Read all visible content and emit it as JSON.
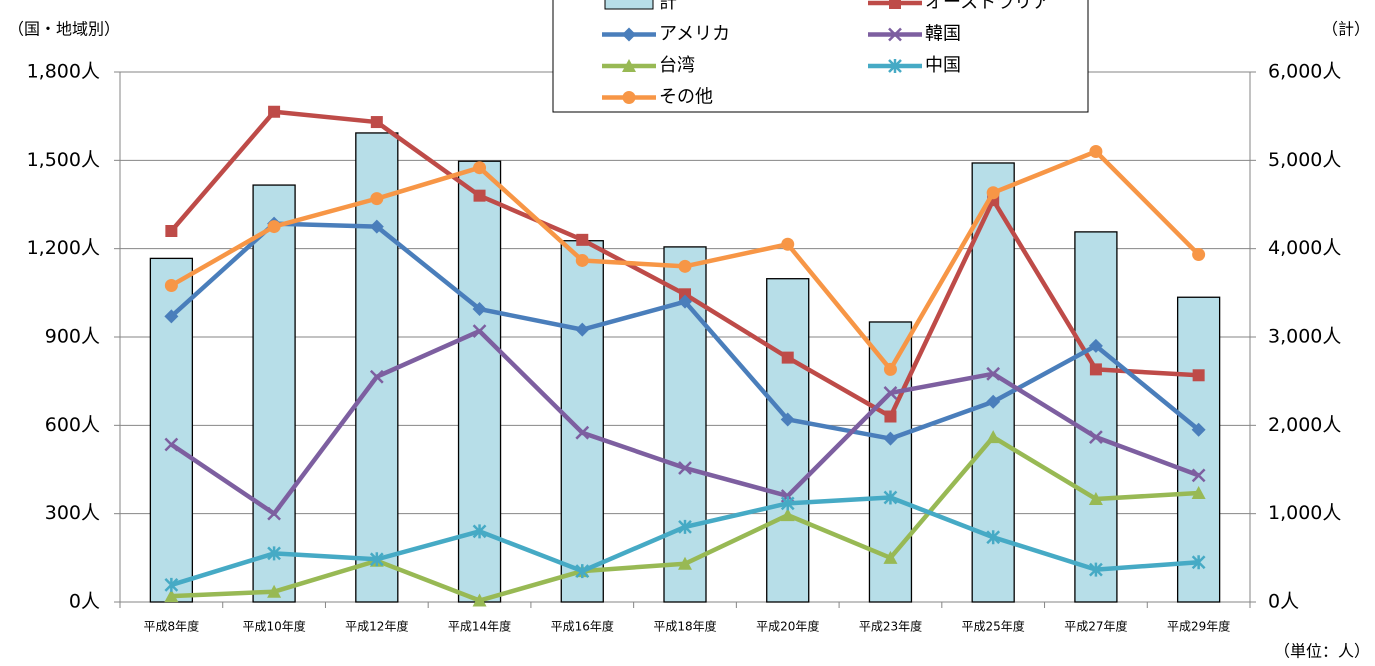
{
  "chart_data": {
    "type": "combo",
    "y_axis_label": "（国・地域別）",
    "y2_axis_label": "（計）",
    "note": "（単位：人）",
    "categories": [
      "平成8年度",
      "平成10年度",
      "平成12年度",
      "平成14年度",
      "平成16年度",
      "平成18年度",
      "平成20年度",
      "平成23年度",
      "平成25年度",
      "平成27年度",
      "平成29年度"
    ],
    "series": [
      {
        "name": "計",
        "type": "bar",
        "axis": "y2",
        "color": "#b7dee8",
        "values": [
          3890,
          4720,
          5310,
          4990,
          4090,
          4020,
          3660,
          3170,
          4970,
          4190,
          3450
        ]
      },
      {
        "name": "オーストラリア",
        "type": "line",
        "marker": "square",
        "color": "#be4b48",
        "values": [
          1260,
          1665,
          1630,
          1380,
          1230,
          1045,
          830,
          630,
          1365,
          790,
          770
        ]
      },
      {
        "name": "アメリカ",
        "type": "line",
        "marker": "diamond",
        "color": "#4a7ebb",
        "values": [
          970,
          1285,
          1275,
          995,
          925,
          1020,
          620,
          555,
          680,
          870,
          585
        ]
      },
      {
        "name": "韓国",
        "type": "line",
        "marker": "x",
        "color": "#7d5fa0",
        "values": [
          535,
          300,
          765,
          920,
          575,
          455,
          360,
          710,
          775,
          560,
          430
        ]
      },
      {
        "name": "台湾",
        "type": "line",
        "marker": "triangle",
        "color": "#98b954",
        "values": [
          20,
          35,
          140,
          5,
          105,
          130,
          295,
          150,
          560,
          350,
          370
        ]
      },
      {
        "name": "中国",
        "type": "line",
        "marker": "star",
        "color": "#46aac5",
        "values": [
          58,
          165,
          145,
          240,
          105,
          255,
          335,
          355,
          220,
          110,
          135
        ]
      },
      {
        "name": "その他",
        "type": "line",
        "marker": "circle",
        "color": "#f79646",
        "values": [
          1075,
          1275,
          1370,
          1475,
          1160,
          1140,
          1215,
          790,
          1390,
          1530,
          1180
        ]
      }
    ],
    "ylim": [
      0,
      1800
    ],
    "yticks": [
      {
        "value": 0,
        "label": "0人"
      },
      {
        "value": 300,
        "label": "300人"
      },
      {
        "value": 600,
        "label": "600人"
      },
      {
        "value": 900,
        "label": "900人"
      },
      {
        "value": 1200,
        "label": "1,200人"
      },
      {
        "value": 1500,
        "label": "1,500人"
      },
      {
        "value": 1800,
        "label": "1,800人"
      }
    ],
    "y2lim": [
      0,
      6000
    ],
    "y2ticks": [
      {
        "value": 0,
        "label": "0人"
      },
      {
        "value": 1000,
        "label": "1,000人"
      },
      {
        "value": 2000,
        "label": "2,000人"
      },
      {
        "value": 3000,
        "label": "3,000人"
      },
      {
        "value": 4000,
        "label": "4,000人"
      },
      {
        "value": 5000,
        "label": "5,000人"
      },
      {
        "value": 6000,
        "label": "6,000人"
      }
    ],
    "grid": true
  }
}
